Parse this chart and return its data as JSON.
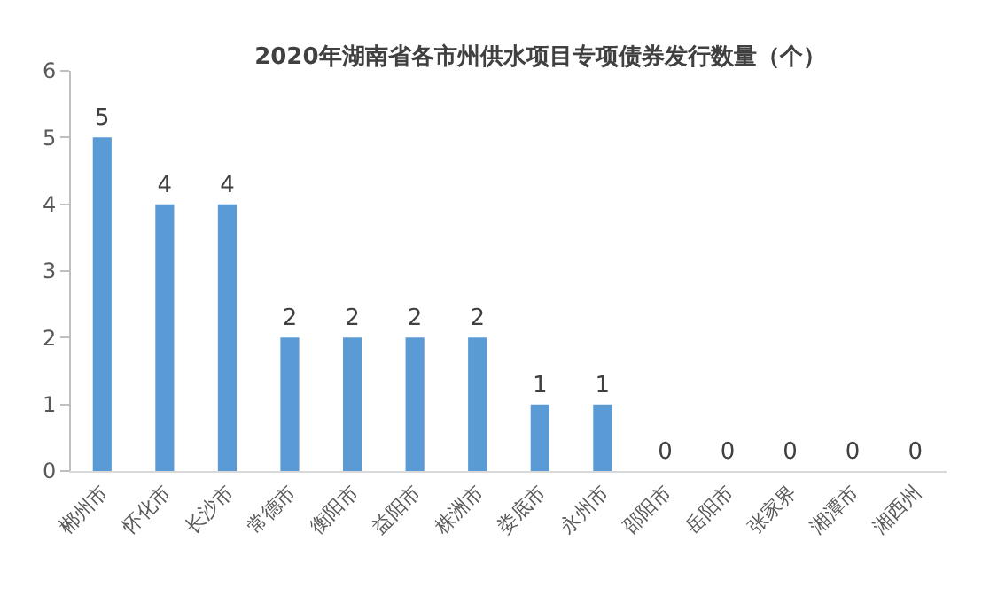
{
  "chart_data": {
    "type": "bar",
    "title": "2020年湖南省各市州供水项目专项债券发行数量（个）",
    "categories": [
      "郴州市",
      "怀化市",
      "长沙市",
      "常德市",
      "衡阳市",
      "益阳市",
      "株洲市",
      "娄底市",
      "永州市",
      "邵阳市",
      "岳阳市",
      "张家界",
      "湘潭市",
      "湘西州"
    ],
    "values": [
      5,
      4,
      4,
      2,
      2,
      2,
      2,
      1,
      1,
      0,
      0,
      0,
      0,
      0
    ],
    "color": "#5b9bd5",
    "ylim": [
      0,
      6
    ],
    "yticks": [
      0,
      1,
      2,
      3,
      4,
      5,
      6
    ],
    "legend": false,
    "data_labels": true
  }
}
